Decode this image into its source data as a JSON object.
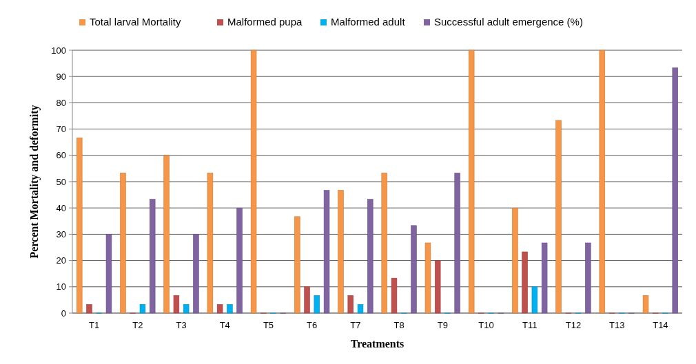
{
  "chart_data": {
    "type": "bar",
    "xlabel": "Treatments",
    "ylabel": "Percent Mortality and deformity",
    "categories": [
      "T1",
      "T2",
      "T3",
      "T4",
      "T5",
      "T6",
      "T7",
      "T8",
      "T9",
      "T10",
      "T11",
      "T12",
      "T13",
      "T14"
    ],
    "series": [
      {
        "name": "Total larval Mortality",
        "color": "#f79646",
        "values": [
          66.7,
          53.3,
          60,
          53.3,
          100,
          36.7,
          46.7,
          53.3,
          26.7,
          100,
          40,
          73.3,
          100,
          6.7
        ]
      },
      {
        "name": "Malformed pupa",
        "color": "#c0504d",
        "values": [
          3.3,
          0,
          6.7,
          3.3,
          0,
          10,
          6.7,
          13.3,
          20,
          0,
          23.3,
          0,
          0,
          0
        ]
      },
      {
        "name": "Malformed adult",
        "color": "#00b0f0",
        "values": [
          0,
          3.3,
          3.3,
          3.3,
          0,
          6.7,
          3.3,
          0,
          0,
          0,
          10,
          0,
          0,
          0
        ]
      },
      {
        "name": "Successful adult emergence (%)",
        "color": "#8064a2",
        "values": [
          30,
          43.3,
          30,
          40,
          0,
          46.7,
          43.3,
          33.3,
          53.3,
          0,
          26.7,
          26.7,
          0,
          93.3
        ]
      }
    ],
    "ylim": [
      0,
      100
    ],
    "yticks": [
      0,
      10,
      20,
      30,
      40,
      50,
      60,
      70,
      80,
      90,
      100
    ],
    "grid": "y",
    "legend": "top"
  }
}
